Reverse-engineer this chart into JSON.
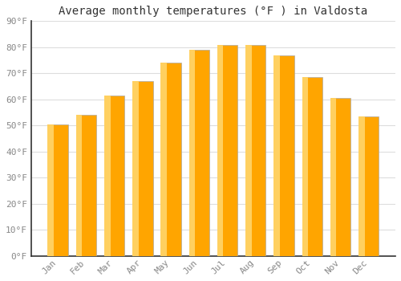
{
  "title": "Average monthly temperatures (°F ) in Valdosta",
  "months": [
    "Jan",
    "Feb",
    "Mar",
    "Apr",
    "May",
    "Jun",
    "Jul",
    "Aug",
    "Sep",
    "Oct",
    "Nov",
    "Dec"
  ],
  "values": [
    50.5,
    54.0,
    61.5,
    67.0,
    74.0,
    79.0,
    81.0,
    81.0,
    77.0,
    68.5,
    60.5,
    53.5
  ],
  "bar_color_main": "#FFA500",
  "bar_color_left": "#FFD060",
  "bar_color_right": "#FF9800",
  "bar_edge_color": "#AAAAAA",
  "ylim": [
    0,
    90
  ],
  "yticks": [
    0,
    10,
    20,
    30,
    40,
    50,
    60,
    70,
    80,
    90
  ],
  "ytick_labels": [
    "0°F",
    "10°F",
    "20°F",
    "30°F",
    "40°F",
    "50°F",
    "60°F",
    "70°F",
    "80°F",
    "90°F"
  ],
  "background_color": "#FFFFFF",
  "plot_bg_color": "#FFFFFF",
  "grid_color": "#DDDDDD",
  "title_fontsize": 10,
  "tick_fontsize": 8,
  "font_family": "monospace",
  "tick_color": "#888888",
  "spine_color": "#333333"
}
